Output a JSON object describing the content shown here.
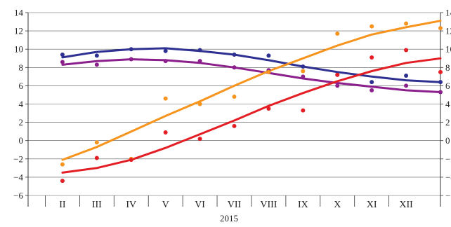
{
  "chart_data": {
    "type": "scatter",
    "xlabel": "2015",
    "ylabel": "",
    "ylim": [
      -6,
      14
    ],
    "yticks": [
      -6,
      -4,
      -2,
      0,
      2,
      4,
      6,
      8,
      10,
      12,
      14
    ],
    "categories": [
      "II",
      "III",
      "IV",
      "V",
      "VI",
      "VII",
      "VIII",
      "IX",
      "X",
      "XI",
      "XII"
    ],
    "grid": "horizontal",
    "legend": "none",
    "series": [
      {
        "color": "#2e3192",
        "points": [
          [
            1.0,
            9.4
          ],
          [
            2.0,
            9.3
          ],
          [
            3.0,
            10.0
          ],
          [
            4.0,
            9.8
          ],
          [
            5.0,
            9.9
          ],
          [
            6.0,
            9.4
          ],
          [
            7.0,
            9.3
          ],
          [
            8.0,
            8.1
          ],
          [
            9.0,
            7.2
          ],
          [
            10.0,
            6.4
          ],
          [
            11.0,
            7.1
          ],
          [
            12.0,
            6.4
          ]
        ],
        "trend": [
          [
            1.0,
            9.1
          ],
          [
            2.0,
            9.7
          ],
          [
            3.0,
            10.0
          ],
          [
            4.0,
            10.1
          ],
          [
            5.0,
            9.8
          ],
          [
            6.0,
            9.4
          ],
          [
            7.0,
            8.8
          ],
          [
            8.0,
            8.1
          ],
          [
            9.0,
            7.5
          ],
          [
            10.0,
            7.0
          ],
          [
            11.0,
            6.6
          ],
          [
            12.0,
            6.4
          ]
        ]
      },
      {
        "color": "#8b1f8c",
        "points": [
          [
            1.0,
            8.6
          ],
          [
            2.0,
            8.3
          ],
          [
            3.0,
            8.9
          ],
          [
            4.0,
            8.7
          ],
          [
            5.0,
            8.7
          ],
          [
            6.0,
            8.0
          ],
          [
            7.0,
            7.7
          ],
          [
            8.0,
            7.0
          ],
          [
            9.0,
            6.0
          ],
          [
            10.0,
            5.5
          ],
          [
            11.0,
            6.0
          ],
          [
            12.0,
            5.3
          ]
        ],
        "trend": [
          [
            1.0,
            8.3
          ],
          [
            2.0,
            8.7
          ],
          [
            3.0,
            8.9
          ],
          [
            4.0,
            8.8
          ],
          [
            5.0,
            8.5
          ],
          [
            6.0,
            8.0
          ],
          [
            7.0,
            7.4
          ],
          [
            8.0,
            6.8
          ],
          [
            9.0,
            6.3
          ],
          [
            10.0,
            5.9
          ],
          [
            11.0,
            5.5
          ],
          [
            12.0,
            5.3
          ]
        ]
      },
      {
        "color": "#f7941d",
        "points": [
          [
            1.0,
            -2.6
          ],
          [
            2.0,
            -0.2
          ],
          [
            3.0,
            -2.0
          ],
          [
            4.0,
            4.6
          ],
          [
            5.0,
            4.0
          ],
          [
            6.0,
            4.8
          ],
          [
            7.0,
            7.5
          ],
          [
            8.0,
            7.6
          ],
          [
            9.0,
            11.7
          ],
          [
            10.0,
            12.5
          ],
          [
            11.0,
            12.8
          ],
          [
            12.0,
            12.3
          ]
        ],
        "trend": [
          [
            1.0,
            -2.1
          ],
          [
            2.0,
            -0.7
          ],
          [
            3.0,
            1.0
          ],
          [
            4.0,
            2.7
          ],
          [
            5.0,
            4.3
          ],
          [
            6.0,
            6.0
          ],
          [
            7.0,
            7.6
          ],
          [
            8.0,
            9.0
          ],
          [
            9.0,
            10.4
          ],
          [
            10.0,
            11.6
          ],
          [
            11.0,
            12.4
          ],
          [
            12.0,
            13.1
          ]
        ]
      },
      {
        "color": "#e31e24",
        "points": [
          [
            1.0,
            -4.4
          ],
          [
            2.0,
            -1.9
          ],
          [
            3.0,
            -2.1
          ],
          [
            4.0,
            0.9
          ],
          [
            5.0,
            0.2
          ],
          [
            6.0,
            1.6
          ],
          [
            7.0,
            3.5
          ],
          [
            8.0,
            3.3
          ],
          [
            9.0,
            7.2
          ],
          [
            10.0,
            9.1
          ],
          [
            11.0,
            9.9
          ],
          [
            12.0,
            7.5
          ]
        ],
        "trend": [
          [
            1.0,
            -3.5
          ],
          [
            2.0,
            -3.0
          ],
          [
            3.0,
            -2.1
          ],
          [
            4.0,
            -0.8
          ],
          [
            5.0,
            0.7
          ],
          [
            6.0,
            2.2
          ],
          [
            7.0,
            3.8
          ],
          [
            8.0,
            5.2
          ],
          [
            9.0,
            6.5
          ],
          [
            10.0,
            7.6
          ],
          [
            11.0,
            8.5
          ],
          [
            12.0,
            9.0
          ]
        ]
      }
    ]
  }
}
